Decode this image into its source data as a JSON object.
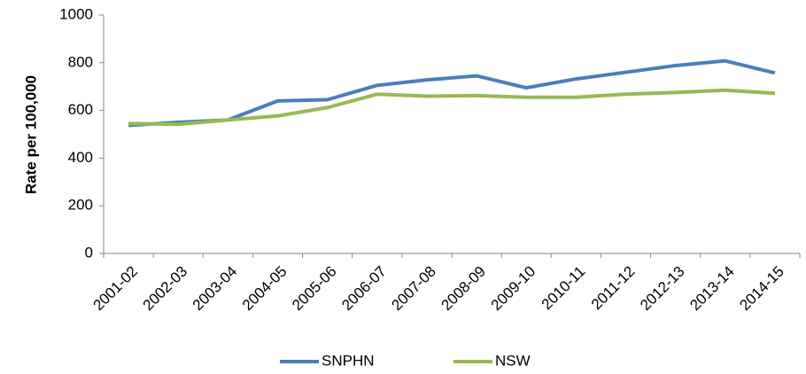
{
  "chart_data": {
    "type": "line",
    "y_label": "Rate per 100,000",
    "categories": [
      "2001-02",
      "2002-03",
      "2003-04",
      "2004-05",
      "2005-06",
      "2006-07",
      "2007-08",
      "2008-09",
      "2009-10",
      "2010-11",
      "2011-12",
      "2012-13",
      "2013-14",
      "2014-15"
    ],
    "series": [
      {
        "name": "SNPHN",
        "color": "#4a7ebb",
        "values": [
          537,
          550,
          560,
          640,
          645,
          705,
          728,
          745,
          695,
          732,
          760,
          788,
          808,
          757
        ]
      },
      {
        "name": "NSW",
        "color": "#98b954",
        "values": [
          545,
          542,
          560,
          577,
          612,
          668,
          660,
          662,
          655,
          655,
          668,
          675,
          685,
          672
        ]
      }
    ],
    "ylim": [
      0,
      1000
    ],
    "yticks": [
      0,
      200,
      400,
      600,
      800,
      1000
    ],
    "grid": false,
    "legend": "bottom"
  }
}
